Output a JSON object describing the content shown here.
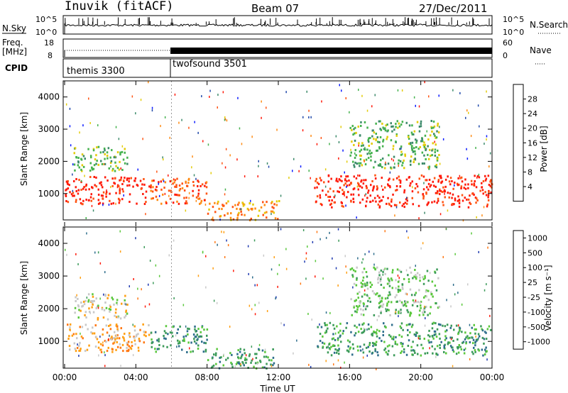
{
  "header": {
    "station": "Inuvik (fitACF)",
    "beam": "Beam 07",
    "date": "27/Dec/2011"
  },
  "top_panels": {
    "nsky_label": "N.Sky",
    "nsearch_label": "N.Search",
    "nsky_ticks": [
      "10^5",
      "10^0"
    ],
    "nsearch_ticks": [
      "10^5",
      "10^0"
    ],
    "freq_label_1": "Freq.",
    "freq_label_2": "[MHz]",
    "freq_ticks": [
      "18",
      "8"
    ],
    "nave_label": "Nave",
    "nave_ticks": [
      "60",
      "0"
    ],
    "cpid_label": "CPID",
    "cpid_modes": [
      {
        "name": "themis 3300",
        "start_hour": 0,
        "end_hour": 6
      },
      {
        "name": "twofsound 3501",
        "start_hour": 6,
        "end_hour": 24
      }
    ]
  },
  "chart_data": [
    {
      "type": "heatmap",
      "title": "",
      "xlabel": "",
      "ylabel": "Slant Range [km]",
      "xlim_hours": [
        0,
        24
      ],
      "ylim": [
        180,
        4500
      ],
      "y_ticks": [
        "1000",
        "2000",
        "3000",
        "4000"
      ],
      "colorbar": {
        "label": "Power [dB]",
        "ticks": [
          "4",
          "8",
          "12",
          "16",
          "20",
          "24",
          "28"
        ],
        "colors": [
          "#0a1aff",
          "#1f48aa",
          "#3c8a6a",
          "#45b24e",
          "#e3cc0a",
          "#ff8c14",
          "#ff5514",
          "#ff1a0a"
        ]
      },
      "regions": [
        {
          "t0": 0.0,
          "t1": 4.8,
          "r0": 700,
          "r1": 1550,
          "level": 7
        },
        {
          "t0": 4.8,
          "t1": 8.0,
          "r0": 700,
          "r1": 1500,
          "level": 6
        },
        {
          "t0": 8.0,
          "t1": 12.0,
          "r0": 200,
          "r1": 800,
          "level": 5
        },
        {
          "t0": 14.0,
          "t1": 24.0,
          "r0": 600,
          "r1": 1600,
          "level": 7
        },
        {
          "t0": 0.5,
          "t1": 3.5,
          "r0": 1700,
          "r1": 2500,
          "level": 3
        },
        {
          "t0": 16.0,
          "t1": 21.0,
          "r0": 1800,
          "r1": 3300,
          "level": 3
        }
      ]
    },
    {
      "type": "heatmap",
      "title": "",
      "xlabel": "Time UT",
      "ylabel": "Slant Range [km]",
      "xlim_hours": [
        0,
        24
      ],
      "ylim": [
        180,
        4500
      ],
      "x_ticks": [
        "00:00",
        "04:00",
        "08:00",
        "12:00",
        "16:00",
        "20:00",
        "00:00"
      ],
      "y_ticks": [
        "1000",
        "2000",
        "3000",
        "4000"
      ],
      "colorbar": {
        "label": "Velocity [m s⁻¹]",
        "ticks": [
          "1000",
          "500",
          "100",
          "25",
          "-25",
          "-100",
          "-500",
          "-1000"
        ],
        "colors": [
          "#1f3ab0",
          "#2e6e8c",
          "#3c9b5a",
          "#5ac83c",
          "#c8c8c8",
          "#ffa014",
          "#ff7814",
          "#ff1a0a"
        ]
      },
      "regions": [
        {
          "t0": 0.0,
          "t1": 4.8,
          "r0": 700,
          "r1": 1550,
          "level": 5
        },
        {
          "t0": 4.8,
          "t1": 8.0,
          "r0": 700,
          "r1": 1500,
          "level": 2
        },
        {
          "t0": 8.0,
          "t1": 12.0,
          "r0": 200,
          "r1": 800,
          "level": 2
        },
        {
          "t0": 14.0,
          "t1": 24.0,
          "r0": 600,
          "r1": 1600,
          "level": 2
        },
        {
          "t0": 0.5,
          "t1": 3.5,
          "r0": 1700,
          "r1": 2500,
          "level": 4
        },
        {
          "t0": 16.0,
          "t1": 21.0,
          "r0": 1800,
          "r1": 3300,
          "level": 3
        }
      ]
    }
  ]
}
